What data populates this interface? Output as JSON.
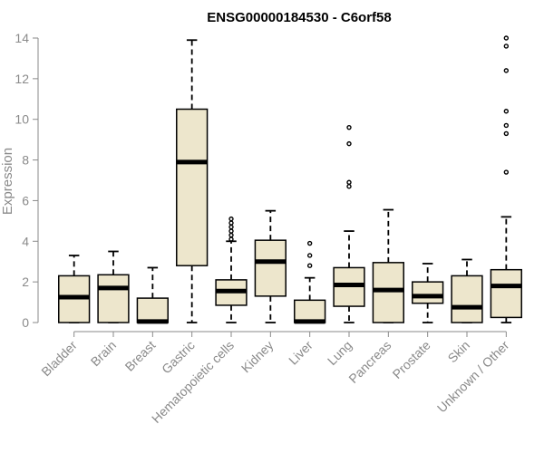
{
  "chart_data": {
    "type": "boxplot",
    "title": "ENSG00000184530 - C6orf58",
    "ylabel": "Expression",
    "xlabel": "",
    "ylim": [
      0,
      14
    ],
    "yticks": [
      0,
      2,
      4,
      6,
      8,
      10,
      12,
      14
    ],
    "grid": false,
    "categories": [
      "Bladder",
      "Brain",
      "Breast",
      "Gastric",
      "Hematopoietic cells",
      "Kidney",
      "Liver",
      "Lung",
      "Pancreas",
      "Prostate",
      "Skin",
      "Unknown / Other"
    ],
    "boxes": [
      {
        "min": 0,
        "q1": 0,
        "median": 1.25,
        "q3": 2.3,
        "max": 3.3,
        "outliers": []
      },
      {
        "min": 0,
        "q1": 0,
        "median": 1.7,
        "q3": 2.35,
        "max": 3.5,
        "outliers": []
      },
      {
        "min": 0,
        "q1": 0,
        "median": 0.05,
        "q3": 1.2,
        "max": 2.7,
        "outliers": []
      },
      {
        "min": 0,
        "q1": 2.8,
        "median": 7.9,
        "q3": 10.5,
        "max": 13.9,
        "outliers": []
      },
      {
        "min": 0,
        "q1": 0.85,
        "median": 1.55,
        "q3": 2.1,
        "max": 4.0,
        "outliers": [
          4.1,
          4.3,
          4.5,
          4.7,
          4.9,
          5.1
        ]
      },
      {
        "min": 0,
        "q1": 1.3,
        "median": 3.0,
        "q3": 4.05,
        "max": 5.5,
        "outliers": []
      },
      {
        "min": 0,
        "q1": 0,
        "median": 0.05,
        "q3": 1.1,
        "max": 2.2,
        "outliers": [
          2.8,
          3.3,
          3.9
        ]
      },
      {
        "min": 0,
        "q1": 0.8,
        "median": 1.85,
        "q3": 2.7,
        "max": 4.5,
        "outliers": [
          6.7,
          6.9,
          8.8,
          9.6
        ]
      },
      {
        "min": 0,
        "q1": 0,
        "median": 1.6,
        "q3": 2.95,
        "max": 5.55,
        "outliers": []
      },
      {
        "min": 0,
        "q1": 0.95,
        "median": 1.3,
        "q3": 2.0,
        "max": 2.9,
        "outliers": []
      },
      {
        "min": 0,
        "q1": 0,
        "median": 0.75,
        "q3": 2.3,
        "max": 3.1,
        "outliers": []
      },
      {
        "min": 0,
        "q1": 0.25,
        "median": 1.8,
        "q3": 2.6,
        "max": 5.2,
        "outliers": [
          7.4,
          9.3,
          9.7,
          10.4,
          12.4,
          13.6,
          14.0
        ]
      }
    ]
  }
}
